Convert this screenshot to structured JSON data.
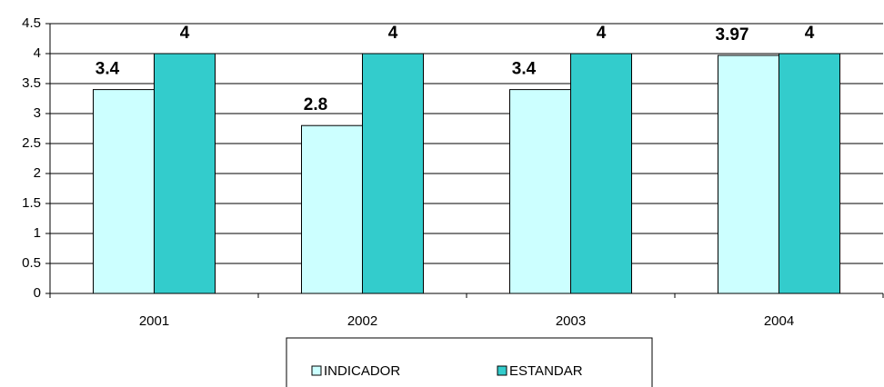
{
  "chart_data": {
    "type": "bar",
    "categories": [
      "2001",
      "2002",
      "2003",
      "2004"
    ],
    "series": [
      {
        "name": "INDICADOR",
        "color": "#ccffff",
        "values": [
          3.4,
          2.8,
          3.4,
          3.97
        ]
      },
      {
        "name": "ESTANDAR",
        "color": "#33cccc",
        "values": [
          4,
          4,
          4,
          4
        ]
      }
    ],
    "ylim": [
      0,
      4.5
    ],
    "yticks": [
      0,
      0.5,
      1,
      1.5,
      2,
      2.5,
      3,
      3.5,
      4,
      4.5
    ],
    "grid": true,
    "legend": "bottom"
  }
}
